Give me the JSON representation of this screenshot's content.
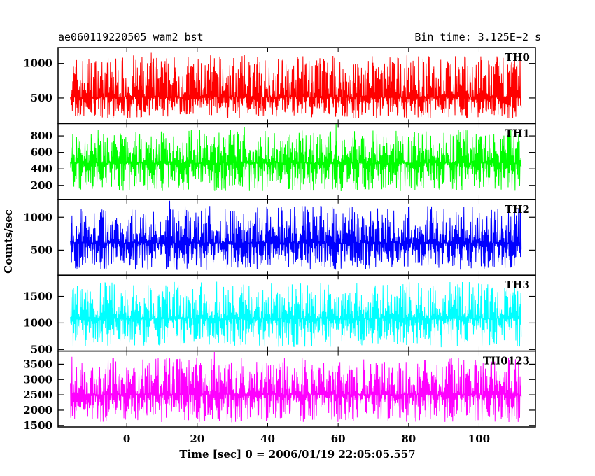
{
  "chart_data": {
    "type": "line",
    "title_left": "ae060119220505_wam2_bst",
    "title_right": "Bin time: 3.125E−2 s",
    "xlabel": "Time [sec] 0 = 2006/01/19 22:05:05.557",
    "ylabel": "Counts/sec",
    "xlim": [
      -19.5,
      116
    ],
    "x_data_range": [
      -16,
      112
    ],
    "x_ticks": [
      0,
      20,
      40,
      60,
      80,
      100
    ],
    "x_tick_labels": [
      "0",
      "20",
      "40",
      "60",
      "80",
      "100"
    ],
    "grid": false,
    "panels": [
      {
        "name": "TH0",
        "color": "#ff0000",
        "ylim": [
          130,
          1230
        ],
        "yticks": [
          500,
          1000
        ],
        "ytick_labels": [
          "500",
          "1000"
        ],
        "mean": 510,
        "low": 170,
        "high": 1230
      },
      {
        "name": "TH1",
        "color": "#00ff00",
        "ylim": [
          30,
          950
        ],
        "yticks": [
          200,
          400,
          600,
          800
        ],
        "ytick_labels": [
          "200",
          "400",
          "600",
          "800"
        ],
        "mean": 470,
        "low": 90,
        "high": 950
      },
      {
        "name": "TH2",
        "color": "#0000ff",
        "ylim": [
          120,
          1270
        ],
        "yticks": [
          500,
          1000
        ],
        "ytick_labels": [
          "500",
          "1000"
        ],
        "mean": 610,
        "low": 150,
        "high": 1270
      },
      {
        "name": "TH3",
        "color": "#00ffff",
        "ylim": [
          470,
          1900
        ],
        "yticks": [
          500,
          1000,
          1500
        ],
        "ytick_labels": [
          "500",
          "1000",
          "1500"
        ],
        "mean": 1080,
        "low": 480,
        "high": 1900
      },
      {
        "name": "TH0123",
        "color": "#ff00ff",
        "ylim": [
          1450,
          3930
        ],
        "yticks": [
          1500,
          2000,
          2500,
          3000,
          3500
        ],
        "ytick_labels": [
          "1500",
          "2000",
          "2500",
          "3000",
          "3500"
        ],
        "mean": 2510,
        "low": 1500,
        "high": 3930
      }
    ]
  }
}
